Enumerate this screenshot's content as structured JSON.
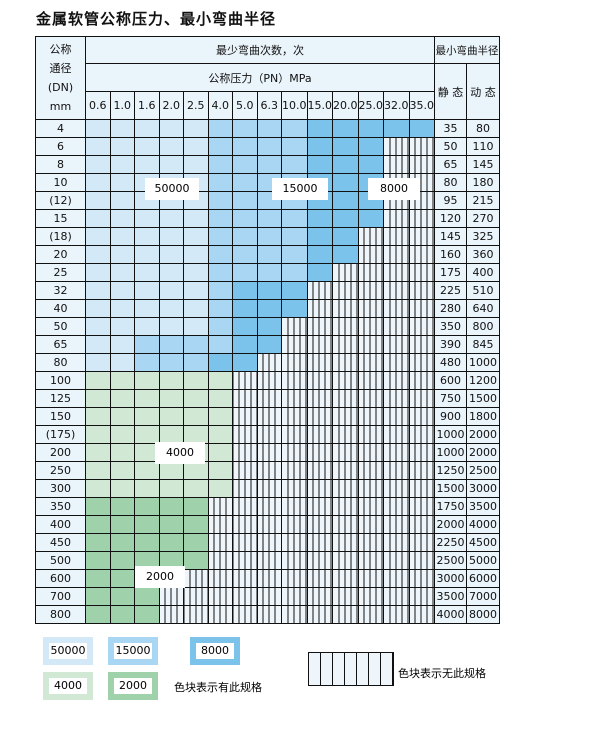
{
  "title": "金属软管公称压力、最小弯曲半径",
  "header": {
    "dn": [
      "公称",
      "通径",
      "(DN)",
      "mm"
    ],
    "bend_count": "最少弯曲次数，次",
    "pressure": "公称压力（PN）MPa",
    "radius": "最小弯曲半径",
    "static": "静 态",
    "dynamic": "动 态",
    "pressures": [
      "0.6",
      "1.0",
      "1.6",
      "2.0",
      "2.5",
      "4.0",
      "5.0",
      "6.3",
      "10.0",
      "15.0",
      "20.0",
      "25.0",
      "32.0",
      "35.0"
    ]
  },
  "rows": [
    {
      "dn": "4",
      "static": "35",
      "dynamic": "80",
      "cells": "L L L L L M M M M D D D D D"
    },
    {
      "dn": "6",
      "static": "50",
      "dynamic": "110",
      "cells": "L L L L L M M M M D D D X X"
    },
    {
      "dn": "8",
      "static": "65",
      "dynamic": "145",
      "cells": "L L L L L M M M M D D D X X"
    },
    {
      "dn": "10",
      "static": "80",
      "dynamic": "180",
      "cells": "L L L L L M M M M D D D X X"
    },
    {
      "dn": "(12)",
      "static": "95",
      "dynamic": "215",
      "cells": "L L L L L M M M M D D D X X"
    },
    {
      "dn": "15",
      "static": "120",
      "dynamic": "270",
      "cells": "L L L L L M M M M D D D X X"
    },
    {
      "dn": "(18)",
      "static": "145",
      "dynamic": "325",
      "cells": "L L L L L M M M M D D X X X"
    },
    {
      "dn": "20",
      "static": "160",
      "dynamic": "360",
      "cells": "L L L L L M M M M D D X X X"
    },
    {
      "dn": "25",
      "static": "175",
      "dynamic": "400",
      "cells": "L L L L L M M M M D X X X X"
    },
    {
      "dn": "32",
      "static": "225",
      "dynamic": "510",
      "cells": "L L L L L M D D D X X X X X"
    },
    {
      "dn": "40",
      "static": "280",
      "dynamic": "640",
      "cells": "L L L L L M D D D X X X X X"
    },
    {
      "dn": "50",
      "static": "350",
      "dynamic": "800",
      "cells": "L L L L L M D D X X X X X X"
    },
    {
      "dn": "65",
      "static": "390",
      "dynamic": "845",
      "cells": "L L M M M M D D X X X X X X"
    },
    {
      "dn": "80",
      "static": "480",
      "dynamic": "1000",
      "cells": "L L M M M D D X X X X X X X"
    },
    {
      "dn": "100",
      "static": "600",
      "dynamic": "1200",
      "cells": "G1 G1 G1 G1 G1 G1 X X X X X X X X"
    },
    {
      "dn": "125",
      "static": "750",
      "dynamic": "1500",
      "cells": "G1 G1 G1 G1 G1 G1 X X X X X X X X"
    },
    {
      "dn": "150",
      "static": "900",
      "dynamic": "1800",
      "cells": "G1 G1 G1 G1 G1 G1 X X X X X X X X"
    },
    {
      "dn": "(175)",
      "static": "1000",
      "dynamic": "2000",
      "cells": "G1 G1 G1 G1 G1 G1 X X X X X X X X"
    },
    {
      "dn": "200",
      "static": "1000",
      "dynamic": "2000",
      "cells": "G1 G1 G1 G1 G1 G1 X X X X X X X X"
    },
    {
      "dn": "250",
      "static": "1250",
      "dynamic": "2500",
      "cells": "G1 G1 G1 G1 G1 G1 X X X X X X X X"
    },
    {
      "dn": "300",
      "static": "1500",
      "dynamic": "3000",
      "cells": "G1 G1 G1 G1 G1 G1 X X X X X X X X"
    },
    {
      "dn": "350",
      "static": "1750",
      "dynamic": "3500",
      "cells": "G2 G2 G2 G2 G2 X X X X X X X X X"
    },
    {
      "dn": "400",
      "static": "2000",
      "dynamic": "4000",
      "cells": "G2 G2 G2 G2 G2 X X X X X X X X X"
    },
    {
      "dn": "450",
      "static": "2250",
      "dynamic": "4500",
      "cells": "G2 G2 G2 G2 G2 X X X X X X X X X"
    },
    {
      "dn": "500",
      "static": "2500",
      "dynamic": "5000",
      "cells": "G2 G2 G2 G2 G2 X X X X X X X X X"
    },
    {
      "dn": "600",
      "static": "3000",
      "dynamic": "6000",
      "cells": "G2 G2 G2 G2 X X X X X X X X X X"
    },
    {
      "dn": "700",
      "static": "3500",
      "dynamic": "7000",
      "cells": "G2 G2 G2 X X X X X X X X X X X"
    },
    {
      "dn": "800",
      "static": "4000",
      "dynamic": "8000",
      "cells": "G2 G2 G2 X X X X X X X X X X X"
    }
  ],
  "region_labels": [
    "50000",
    "15000",
    "8000",
    "4000",
    "2000"
  ],
  "legend": {
    "items": [
      "50000",
      "15000",
      "8000",
      "4000",
      "2000"
    ],
    "colors": [
      "#d3e9f8",
      "#a9d6f3",
      "#7cc3ec",
      "#d1e8d4",
      "#9fd2ab"
    ],
    "has_spec": "色块表示有此规格",
    "no_spec": "色块表示无此规格"
  }
}
